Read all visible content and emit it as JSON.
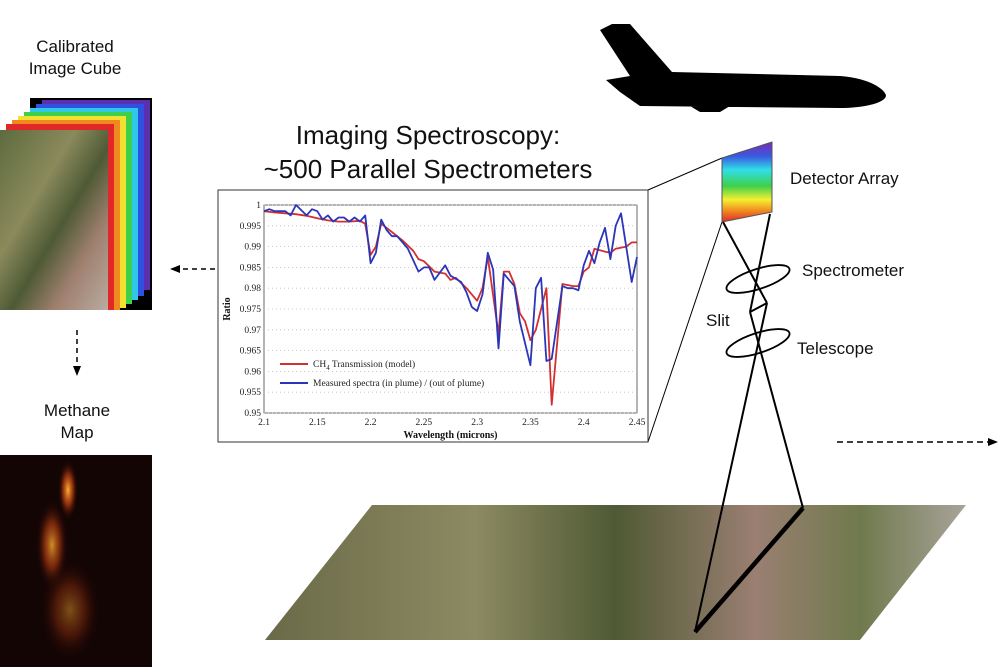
{
  "labels": {
    "cube_line1": "Calibrated",
    "cube_line2": "Image Cube",
    "methane_line1": "Methane",
    "methane_line2": "Map",
    "title_line1": "Imaging Spectroscopy:",
    "title_line2": "~500 Parallel Spectrometers",
    "detector": "Detector Array",
    "spectrometer": "Spectrometer",
    "slit": "Slit",
    "telescope": "Telescope"
  },
  "colors": {
    "model": "#d03030",
    "measured": "#2b35b8"
  },
  "chart_data": {
    "type": "line",
    "xlabel": "Wavelength (microns)",
    "ylabel": "Ratio",
    "xlim": [
      2.1,
      2.45
    ],
    "ylim": [
      0.95,
      1.0
    ],
    "xticks": [
      "2.1",
      "2.15",
      "2.2",
      "2.25",
      "2.3",
      "2.35",
      "2.4",
      "2.45"
    ],
    "yticks": [
      "0.95",
      "0.955",
      "0.96",
      "0.965",
      "0.97",
      "0.975",
      "0.98",
      "0.985",
      "0.99",
      "0.995",
      "1"
    ],
    "grid": "horizontal dotted",
    "legend": "bottom-left",
    "series": [
      {
        "name": "CH4 Transmission (model)",
        "legend_main": "CH",
        "legend_sub": "4",
        "legend_rest": " Transmission (model)",
        "x": [
          2.1,
          2.11,
          2.12,
          2.13,
          2.14,
          2.15,
          2.16,
          2.17,
          2.18,
          2.19,
          2.195,
          2.2,
          2.205,
          2.21,
          2.22,
          2.23,
          2.24,
          2.245,
          2.25,
          2.26,
          2.27,
          2.275,
          2.28,
          2.29,
          2.3,
          2.305,
          2.31,
          2.32,
          2.325,
          2.33,
          2.335,
          2.34,
          2.345,
          2.35,
          2.355,
          2.365,
          2.37,
          2.38,
          2.39,
          2.395,
          2.4,
          2.405,
          2.41,
          2.42,
          2.425,
          2.43,
          2.44,
          2.445,
          2.45
        ],
        "y": [
          0.9985,
          0.9982,
          0.998,
          0.9978,
          0.9974,
          0.9968,
          0.9963,
          0.996,
          0.996,
          0.9962,
          0.9955,
          0.988,
          0.99,
          0.9955,
          0.9935,
          0.9915,
          0.989,
          0.987,
          0.9865,
          0.984,
          0.9835,
          0.982,
          0.9825,
          0.98,
          0.977,
          0.98,
          0.9875,
          0.969,
          0.984,
          0.984,
          0.981,
          0.974,
          0.972,
          0.9675,
          0.97,
          0.98,
          0.952,
          0.981,
          0.9805,
          0.9805,
          0.984,
          0.985,
          0.9895,
          0.9888,
          0.9885,
          0.9895,
          0.99,
          0.991,
          0.991
        ]
      },
      {
        "name": "Measured spectra (in plume) / (out of plume)",
        "x": [
          2.1,
          2.105,
          2.11,
          2.12,
          2.125,
          2.13,
          2.14,
          2.145,
          2.15,
          2.155,
          2.16,
          2.165,
          2.17,
          2.175,
          2.18,
          2.185,
          2.19,
          2.195,
          2.2,
          2.205,
          2.21,
          2.215,
          2.22,
          2.225,
          2.235,
          2.245,
          2.25,
          2.255,
          2.26,
          2.27,
          2.275,
          2.285,
          2.29,
          2.295,
          2.3,
          2.305,
          2.31,
          2.315,
          2.32,
          2.325,
          2.33,
          2.335,
          2.34,
          2.35,
          2.355,
          2.36,
          2.365,
          2.37,
          2.38,
          2.385,
          2.39,
          2.395,
          2.4,
          2.405,
          2.41,
          2.415,
          2.42,
          2.425,
          2.43,
          2.435,
          2.445,
          2.45
        ],
        "y": [
          0.9985,
          0.999,
          0.9985,
          0.9985,
          0.9975,
          1.0,
          0.9975,
          0.999,
          0.9985,
          0.9965,
          0.9975,
          0.996,
          0.997,
          0.997,
          0.996,
          0.997,
          0.996,
          0.9975,
          0.986,
          0.9885,
          0.9965,
          0.994,
          0.9925,
          0.9925,
          0.9895,
          0.984,
          0.985,
          0.985,
          0.982,
          0.9855,
          0.983,
          0.9815,
          0.979,
          0.9755,
          0.9745,
          0.9785,
          0.9885,
          0.9845,
          0.9655,
          0.9835,
          0.982,
          0.9805,
          0.972,
          0.9615,
          0.98,
          0.9825,
          0.9625,
          0.963,
          0.9805,
          0.98,
          0.98,
          0.9795,
          0.9855,
          0.989,
          0.986,
          0.991,
          0.9945,
          0.987,
          0.995,
          0.998,
          0.9815,
          0.9875
        ]
      }
    ]
  }
}
